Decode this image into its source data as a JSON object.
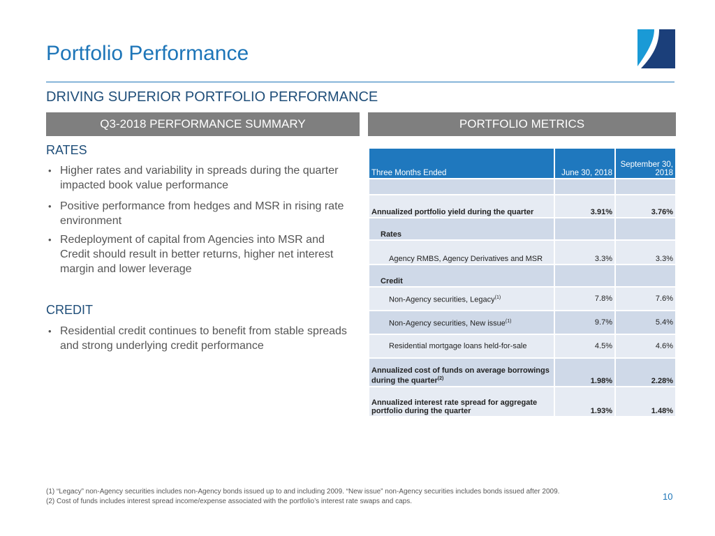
{
  "title": "Portfolio Performance",
  "subtitle": "DRIVING SUPERIOR PORTFOLIO PERFORMANCE",
  "left_header": "Q3-2018 PERFORMANCE SUMMARY",
  "right_header": "PORTFOLIO METRICS",
  "rates": {
    "heading": "RATES",
    "bullets": [
      "Higher rates and variability in spreads during the quarter impacted book value performance",
      "Positive performance from hedges and MSR in rising rate environment",
      "Redeployment of capital from Agencies into MSR and Credit should result in better returns, higher net interest margin and lower leverage"
    ]
  },
  "credit": {
    "heading": "CREDIT",
    "bullets": [
      "Residential credit continues to benefit from stable spreads and strong underlying credit performance"
    ]
  },
  "table": {
    "header": [
      "Three Months Ended",
      "June 30, 2018",
      "September 30, 2018"
    ],
    "rows": [
      {
        "label": "",
        "v1": "",
        "v2": ""
      },
      {
        "label": "Annualized portfolio yield during the quarter",
        "v1": "3.91%",
        "v2": "3.76%"
      },
      {
        "label": "Rates",
        "v1": "",
        "v2": ""
      },
      {
        "label": "Agency RMBS, Agency Derivatives and MSR",
        "v1": "3.3%",
        "v2": "3.3%"
      },
      {
        "label": "Credit",
        "v1": "",
        "v2": ""
      },
      {
        "label": "Non-Agency securities, Legacy",
        "sup": "(1)",
        "v1": "7.8%",
        "v2": "7.6%"
      },
      {
        "label": "Non-Agency securities, New issue",
        "sup": "(1)",
        "v1": "9.7%",
        "v2": "5.4%"
      },
      {
        "label": "Residential mortgage loans held-for-sale",
        "v1": "4.5%",
        "v2": "4.6%"
      },
      {
        "label": "Annualized cost of funds on average borrowings during the quarter",
        "sup": "(2)",
        "v1": "1.98%",
        "v2": "2.28%"
      },
      {
        "label": "Annualized interest rate spread for aggregate portfolio during the quarter",
        "v1": "1.93%",
        "v2": "1.48%"
      }
    ]
  },
  "footnotes": [
    "(1)  “Legacy” non-Agency securities includes non-Agency bonds issued up to and including 2009.  “New issue” non-Agency securities includes bonds issued after 2009.",
    "(2)  Cost of funds includes interest spread income/expense associated with the portfolio’s interest rate swaps and caps."
  ],
  "page_number": "10",
  "colors": {
    "accent": "#1d75b8",
    "header_bar": "#7f7f7f",
    "table_header": "#1f78be"
  }
}
